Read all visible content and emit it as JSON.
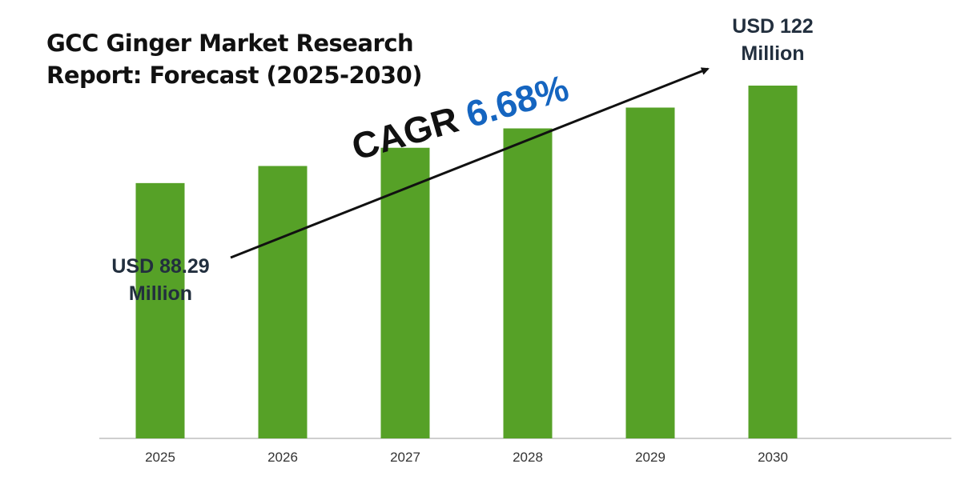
{
  "title": {
    "line1": "GCC Ginger Market Research",
    "line2": "Report: Forecast (2025-2030)"
  },
  "cagr": {
    "label": "CAGR",
    "value": "6.68%"
  },
  "callouts": {
    "first": {
      "line1": "USD 88.29",
      "line2": "Million"
    },
    "last": {
      "line1": "USD 122",
      "line2": "Million"
    }
  },
  "colors": {
    "bar": "#56a127",
    "cagr_value": "#1565c0",
    "callout_text": "#222f3e",
    "axis": "#bfbfbf"
  },
  "chart_data": {
    "type": "bar",
    "title": "GCC Ginger Market Research Report: Forecast (2025-2030)",
    "categories": [
      "2025",
      "2026",
      "2027",
      "2028",
      "2029",
      "2030"
    ],
    "values": [
      88.29,
      94.2,
      100.5,
      107.2,
      114.4,
      122
    ],
    "unit": "USD Million",
    "xlabel": "",
    "ylabel": "",
    "ylim": [
      0,
      122
    ],
    "grid": false,
    "legend": "none",
    "annotations": [
      "CAGR 6.68%",
      "USD 88.29 Million",
      "USD 122 Million"
    ]
  }
}
